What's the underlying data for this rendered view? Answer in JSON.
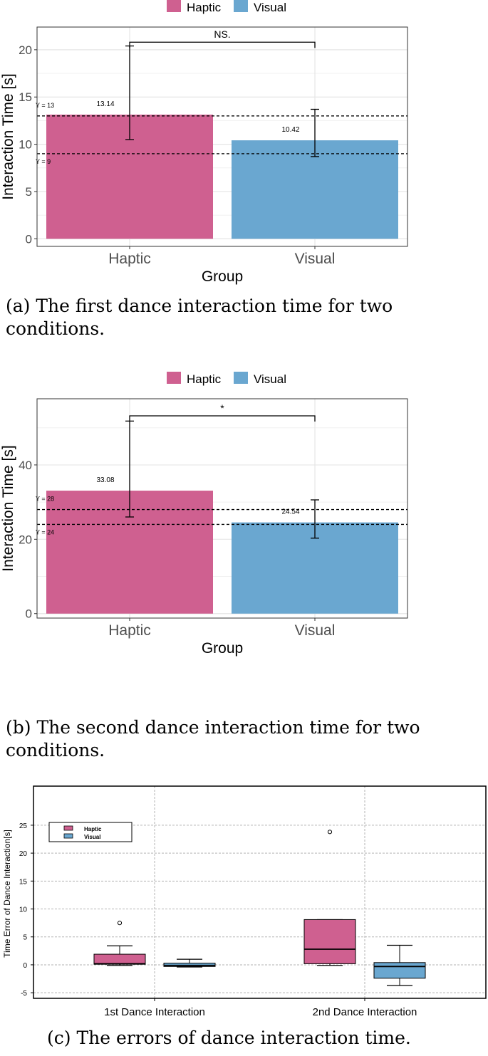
{
  "colors": {
    "haptic": "#cf6090",
    "visual": "#6aa7d0"
  },
  "chart_data": [
    {
      "type": "bar",
      "legend": [
        "Haptic",
        "Visual"
      ],
      "legend_placement": "top",
      "categories": [
        "Haptic",
        "Visual"
      ],
      "values": [
        13.14,
        10.42
      ],
      "value_labels": [
        "13.14",
        "10.42"
      ],
      "error_bars": [
        [
          10.5,
          20.4
        ],
        [
          8.7,
          13.7
        ]
      ],
      "xlabel": "Group",
      "ylabel": "Interaction Time [s]",
      "ylim": [
        -0.8,
        22.4
      ],
      "yticks": [
        0,
        5,
        10,
        15,
        20
      ],
      "ytick_labels": [
        "0",
        "5",
        "10",
        "15",
        "20"
      ],
      "hlines": [
        {
          "y": 13,
          "label": "Y = 13"
        },
        {
          "y": 9,
          "label": "Y = 9"
        }
      ],
      "significance": {
        "label": "NS.",
        "y": 20.8
      },
      "grid": true,
      "caption": "(a)  The first dance interaction time for two conditions."
    },
    {
      "type": "bar",
      "legend": [
        "Haptic",
        "Visual"
      ],
      "legend_placement": "top",
      "categories": [
        "Haptic",
        "Visual"
      ],
      "values": [
        33.08,
        24.54
      ],
      "value_labels": [
        "33.08",
        "24.54"
      ],
      "error_bars": [
        [
          26.0,
          51.8
        ],
        [
          20.3,
          30.6
        ]
      ],
      "xlabel": "Group",
      "ylabel": "Interaction Time [s]",
      "ylim": [
        -1.2,
        57.8
      ],
      "yticks": [
        0,
        20,
        40
      ],
      "ytick_labels": [
        "0",
        "20",
        "40"
      ],
      "hlines": [
        {
          "y": 28,
          "label": "Y = 28"
        },
        {
          "y": 24,
          "label": "Y = 24"
        }
      ],
      "significance": {
        "label": "*",
        "y": 53.2
      },
      "grid": true,
      "caption": "(b)  The second dance interaction time for two conditions."
    },
    {
      "type": "box",
      "legend": [
        "Haptic",
        "Visual"
      ],
      "legend_placement": "top-left",
      "categories": [
        "1st Dance Interaction",
        "2nd Dance Interaction"
      ],
      "series": [
        {
          "name": "Haptic",
          "boxes": [
            {
              "whisker_low": -0.1,
              "q1": 0.1,
              "median": 0.2,
              "q3": 1.9,
              "whisker_high": 3.4,
              "outliers": [
                7.5
              ]
            },
            {
              "whisker_low": -0.1,
              "q1": 0.2,
              "median": 2.8,
              "q3": 8.1,
              "whisker_high": 8.1,
              "outliers": [
                23.8
              ]
            }
          ]
        },
        {
          "name": "Visual",
          "boxes": [
            {
              "whisker_low": -0.4,
              "q1": -0.3,
              "median": -0.1,
              "q3": 0.3,
              "whisker_high": 1.0,
              "outliers": []
            },
            {
              "whisker_low": -3.7,
              "q1": -2.4,
              "median": -0.3,
              "q3": 0.4,
              "whisker_high": 3.5,
              "outliers": []
            }
          ]
        }
      ],
      "ylabel": "Time Error of Dance Interaction[s]",
      "ylim": [
        -6,
        32
      ],
      "yticks": [
        -5,
        0,
        5,
        10,
        15,
        20,
        25
      ],
      "ytick_labels": [
        "-5",
        "0",
        "5",
        "10",
        "15",
        "20",
        "25"
      ],
      "grid": true,
      "caption": "(c)  The errors of dance interaction time."
    }
  ]
}
